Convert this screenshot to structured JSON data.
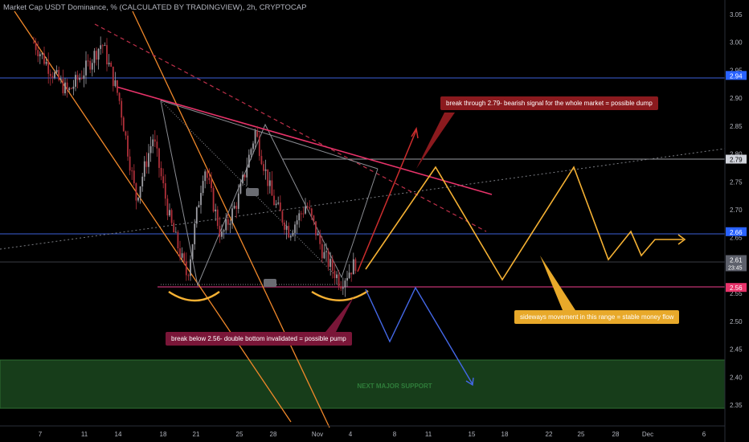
{
  "header": {
    "title": "Market Cap USDT Dominance, % (CALCULATED BY TRADINGVIEW), 2h, CRYPTOCAP"
  },
  "colors": {
    "background": "#000000",
    "candle_up": "#9e9ea4",
    "candle_down": "#b0303a",
    "channel_orange": "#f0882a",
    "resistance_pink": "#e8336a",
    "dashed_red": "#c0304a",
    "blue_line": "#3c5fd8",
    "pink_support": "#c03372",
    "green_zone": "#173d1a",
    "yellow_path": "#f5b133",
    "blue_path": "#4468e8",
    "red_path": "#cc2d2d"
  },
  "price_axis": {
    "ticks": [
      "3.05",
      "3.00",
      "2.95",
      "2.90",
      "2.85",
      "2.80",
      "2.75",
      "2.70",
      "2.65",
      "2.60",
      "2.55",
      "2.50",
      "2.45",
      "2.40",
      "2.35"
    ],
    "badges": [
      {
        "value": "2.94",
        "color": "#2962ff",
        "text_color": "#ffffff"
      },
      {
        "value": "2.79",
        "color": "#d1d4dc",
        "text_color": "#000000"
      },
      {
        "value": "2.66",
        "color": "#2962ff",
        "text_color": "#ffffff"
      },
      {
        "value": "2.61",
        "sub": "23:45",
        "color": "#5d606b",
        "text_color": "#ffffff"
      },
      {
        "value": "2.56",
        "color": "#e8336a",
        "text_color": "#ffffff"
      }
    ]
  },
  "time_axis": {
    "ticks": [
      "7",
      "11",
      "14",
      "18",
      "21",
      "25",
      "28",
      "Nov",
      "4",
      "8",
      "11",
      "15",
      "18",
      "22",
      "25",
      "28",
      "Dec",
      "6"
    ]
  },
  "annotations": {
    "bear_note": "break through 2.79- bearish signal for the whole market = possible dump",
    "pump_note": "break below 2.56- double bottom invalidated = possible pump",
    "sideways_note": "sideways movement in this range = stable money flow",
    "support_label": "NEXT MAJOR SUPPORT"
  },
  "chart_data": {
    "type": "candlestick",
    "symbol": "Market Cap USDT Dominance, %",
    "interval": "2h",
    "price_range": [
      2.33,
      3.07
    ],
    "approx_close_path": [
      {
        "x": "6",
        "y": 3.0
      },
      {
        "x": "7",
        "y": 2.95
      },
      {
        "x": "9",
        "y": 2.91
      },
      {
        "x": "11",
        "y": 2.95
      },
      {
        "x": "13",
        "y": 3.0
      },
      {
        "x": "14",
        "y": 2.9
      },
      {
        "x": "16",
        "y": 2.72
      },
      {
        "x": "18",
        "y": 2.83
      },
      {
        "x": "20",
        "y": 2.68
      },
      {
        "x": "21",
        "y": 2.58
      },
      {
        "x": "23",
        "y": 2.78
      },
      {
        "x": "25",
        "y": 2.65
      },
      {
        "x": "27",
        "y": 2.72
      },
      {
        "x": "28",
        "y": 2.84
      },
      {
        "x": "29",
        "y": 2.72
      },
      {
        "x": "30",
        "y": 2.66
      },
      {
        "x": "Nov",
        "y": 2.71
      },
      {
        "x": "2",
        "y": 2.62
      },
      {
        "x": "3",
        "y": 2.57
      },
      {
        "x": "4",
        "y": 2.61
      }
    ],
    "levels": [
      {
        "name": "2.94",
        "value": 2.94
      },
      {
        "name": "2.79",
        "value": 2.79
      },
      {
        "name": "2.66",
        "value": 2.66
      },
      {
        "name": "2.56",
        "value": 2.56
      }
    ],
    "support_zone": {
      "label": "NEXT MAJOR SUPPORT",
      "from": 2.35,
      "to": 2.43
    },
    "last_price": 2.61
  }
}
